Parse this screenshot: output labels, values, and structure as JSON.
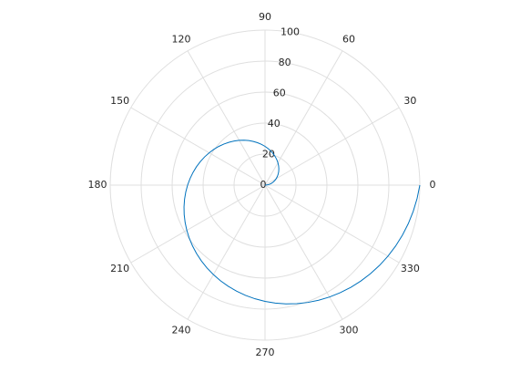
{
  "chart_data": {
    "type": "polar",
    "series": [
      {
        "color": "#0072bd",
        "theta": [
          0,
          5,
          10,
          15,
          20,
          25,
          30,
          35,
          40,
          45,
          50,
          55,
          60,
          65,
          70,
          75,
          80,
          85,
          90,
          95,
          100,
          105,
          110,
          115,
          120,
          125,
          130,
          135,
          140,
          145,
          150,
          155,
          160,
          165,
          170,
          175,
          180,
          185,
          190,
          195,
          200,
          205,
          210,
          215,
          220,
          225,
          230,
          235,
          240,
          245,
          250,
          255,
          260,
          265,
          270,
          275,
          280,
          285,
          290,
          295,
          300,
          305,
          310,
          315,
          320,
          325,
          330,
          335,
          340,
          345,
          350,
          355,
          360
        ],
        "values": [
          0,
          1.39,
          2.78,
          4.17,
          5.56,
          6.94,
          8.33,
          9.72,
          11.11,
          12.5,
          13.89,
          15.28,
          16.67,
          18.06,
          19.44,
          20.83,
          22.22,
          23.61,
          25,
          26.39,
          27.78,
          29.17,
          30.56,
          31.94,
          33.33,
          34.72,
          36.11,
          37.5,
          38.89,
          40.28,
          41.67,
          43.06,
          44.44,
          45.83,
          47.22,
          48.61,
          50,
          51.39,
          52.78,
          54.17,
          55.56,
          56.94,
          58.33,
          59.72,
          61.11,
          62.5,
          63.89,
          65.28,
          66.67,
          68.06,
          69.44,
          70.83,
          72.22,
          73.61,
          75,
          76.39,
          77.78,
          79.17,
          80.56,
          81.94,
          83.33,
          84.72,
          86.11,
          87.5,
          88.89,
          90.28,
          91.67,
          93.06,
          94.44,
          95.83,
          97.22,
          98.61,
          100
        ]
      }
    ],
    "rlim": [
      0,
      100
    ],
    "rticks": [
      0,
      20,
      40,
      60,
      80,
      100
    ],
    "thetaticks": [
      0,
      30,
      60,
      90,
      120,
      150,
      180,
      210,
      240,
      270,
      300,
      330
    ],
    "grid": true
  }
}
